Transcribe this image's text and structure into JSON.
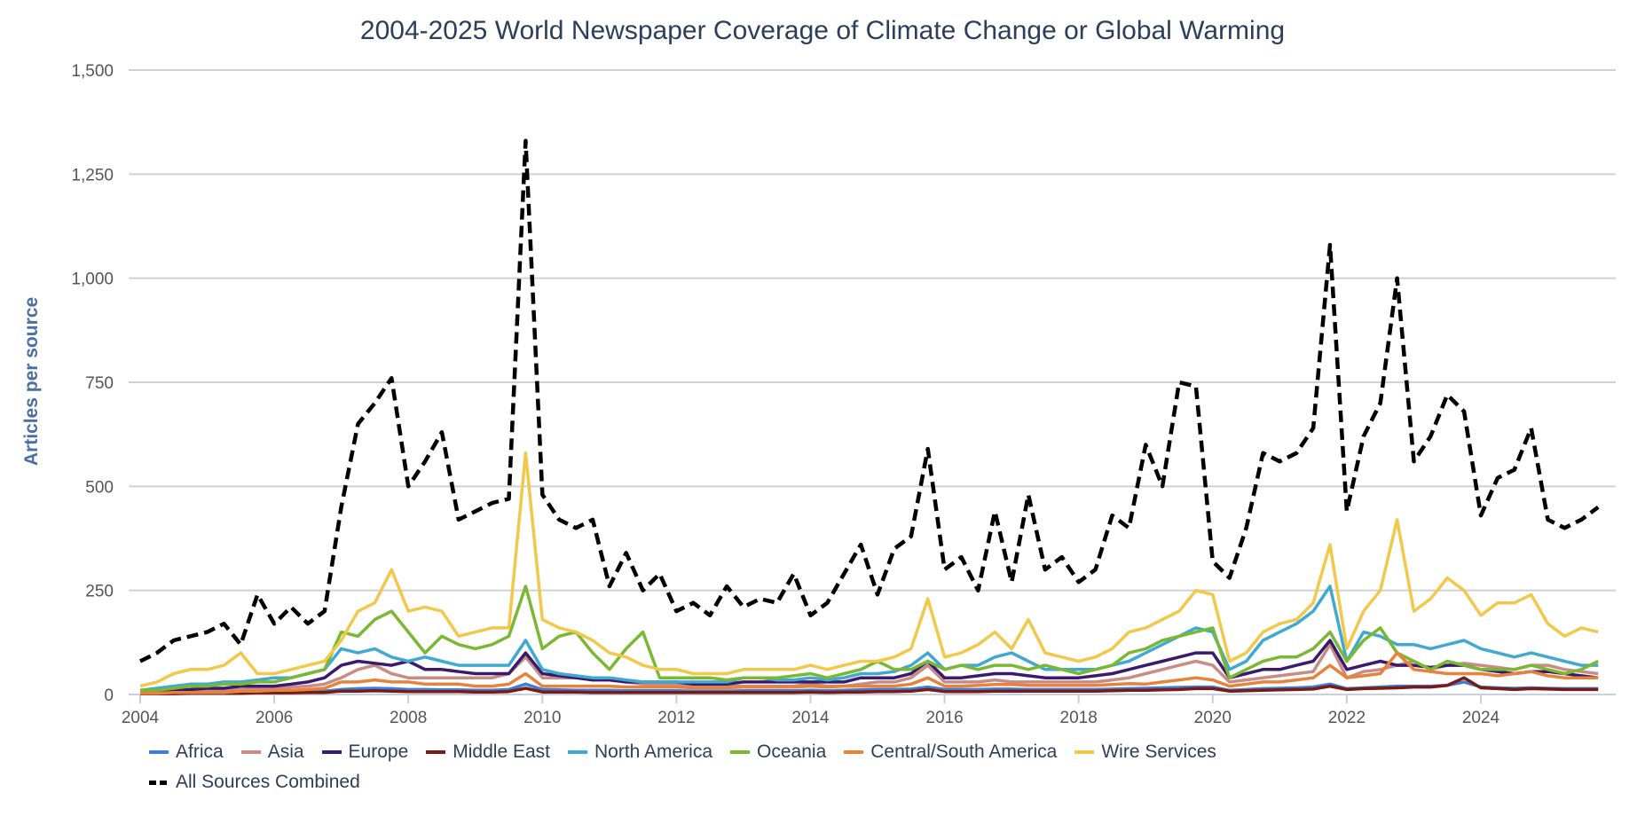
{
  "chart_data": {
    "type": "line",
    "title": "2004-2025 World Newspaper Coverage of Climate Change or Global Warming",
    "ylabel": "Articles per source",
    "xlabel": "",
    "ylim": [
      0,
      1500
    ],
    "xlim": [
      2004,
      2025.75
    ],
    "yticks": [
      0,
      250,
      500,
      750,
      1000,
      1250,
      1500
    ],
    "ytick_labels": [
      "0",
      "250",
      "500",
      "750",
      "1,000",
      "1,250",
      "1,500"
    ],
    "xticks": [
      2004,
      2006,
      2008,
      2010,
      2012,
      2014,
      2016,
      2018,
      2020,
      2022,
      2024
    ],
    "xtick_labels": [
      "2004",
      "2006",
      "2008",
      "2010",
      "2012",
      "2014",
      "2016",
      "2018",
      "2020",
      "2022",
      "2024"
    ],
    "grid": "horizontal",
    "legend_position": "bottom",
    "x": [
      2004,
      2004.25,
      2004.5,
      2004.75,
      2005,
      2005.25,
      2005.5,
      2005.75,
      2006,
      2006.25,
      2006.5,
      2006.75,
      2007,
      2007.25,
      2007.5,
      2007.75,
      2008,
      2008.25,
      2008.5,
      2008.75,
      2009,
      2009.25,
      2009.5,
      2009.75,
      2010,
      2010.25,
      2010.5,
      2010.75,
      2011,
      2011.25,
      2011.5,
      2011.75,
      2012,
      2012.25,
      2012.5,
      2012.75,
      2013,
      2013.25,
      2013.5,
      2013.75,
      2014,
      2014.25,
      2014.5,
      2014.75,
      2015,
      2015.25,
      2015.5,
      2015.75,
      2016,
      2016.25,
      2016.5,
      2016.75,
      2017,
      2017.25,
      2017.5,
      2017.75,
      2018,
      2018.25,
      2018.5,
      2018.75,
      2019,
      2019.25,
      2019.5,
      2019.75,
      2020,
      2020.25,
      2020.5,
      2020.75,
      2021,
      2021.25,
      2021.5,
      2021.75,
      2022,
      2022.25,
      2022.5,
      2022.75,
      2023,
      2023.25,
      2023.5,
      2023.75,
      2024,
      2024.25,
      2024.5,
      2024.75,
      2025,
      2025.25,
      2025.5,
      2025.75
    ],
    "series": [
      {
        "name": "Africa",
        "color": "#3b7dd8",
        "dashed": false,
        "values": [
          3,
          3,
          4,
          4,
          5,
          5,
          6,
          6,
          6,
          7,
          8,
          8,
          12,
          14,
          15,
          14,
          12,
          12,
          11,
          11,
          10,
          10,
          12,
          25,
          12,
          11,
          10,
          10,
          10,
          9,
          9,
          9,
          9,
          8,
          8,
          8,
          9,
          9,
          9,
          9,
          10,
          9,
          10,
          11,
          12,
          12,
          13,
          18,
          12,
          12,
          12,
          13,
          13,
          12,
          12,
          12,
          12,
          12,
          13,
          14,
          15,
          16,
          17,
          18,
          18,
          10,
          12,
          14,
          15,
          16,
          18,
          25,
          14,
          16,
          18,
          20,
          20,
          20,
          22,
          30,
          18,
          16,
          15,
          16,
          15,
          14,
          14,
          14
        ]
      },
      {
        "name": "Asia",
        "color": "#c98b85",
        "dashed": false,
        "values": [
          5,
          5,
          8,
          10,
          10,
          12,
          12,
          15,
          15,
          18,
          20,
          25,
          40,
          60,
          70,
          50,
          40,
          40,
          40,
          40,
          40,
          40,
          50,
          90,
          40,
          40,
          40,
          35,
          35,
          30,
          25,
          25,
          25,
          20,
          20,
          20,
          20,
          20,
          20,
          20,
          25,
          20,
          20,
          25,
          30,
          30,
          40,
          70,
          30,
          30,
          30,
          35,
          30,
          30,
          30,
          30,
          30,
          30,
          35,
          40,
          50,
          60,
          70,
          80,
          70,
          30,
          35,
          40,
          45,
          50,
          55,
          120,
          40,
          55,
          60,
          70,
          80,
          60,
          70,
          75,
          70,
          65,
          60,
          70,
          70,
          60,
          55,
          50
        ]
      },
      {
        "name": "Europe",
        "color": "#3a1a6e",
        "dashed": false,
        "values": [
          5,
          8,
          10,
          12,
          15,
          15,
          20,
          20,
          20,
          25,
          30,
          40,
          70,
          80,
          75,
          70,
          80,
          60,
          60,
          55,
          50,
          50,
          50,
          100,
          50,
          45,
          40,
          35,
          35,
          30,
          30,
          30,
          30,
          25,
          25,
          25,
          30,
          30,
          30,
          30,
          30,
          30,
          30,
          40,
          40,
          40,
          50,
          80,
          40,
          40,
          45,
          50,
          50,
          45,
          40,
          40,
          40,
          45,
          50,
          60,
          70,
          80,
          90,
          100,
          100,
          40,
          50,
          60,
          60,
          70,
          80,
          130,
          60,
          70,
          80,
          70,
          70,
          65,
          70,
          70,
          60,
          55,
          50,
          55,
          55,
          50,
          45,
          40
        ]
      },
      {
        "name": "Middle East",
        "color": "#7a1a12",
        "dashed": false,
        "values": [
          2,
          2,
          2,
          3,
          3,
          3,
          3,
          4,
          4,
          4,
          5,
          5,
          8,
          8,
          9,
          8,
          7,
          7,
          7,
          7,
          6,
          6,
          7,
          15,
          6,
          6,
          6,
          5,
          5,
          5,
          5,
          5,
          5,
          5,
          5,
          5,
          5,
          5,
          5,
          5,
          6,
          5,
          6,
          6,
          7,
          7,
          8,
          12,
          7,
          7,
          7,
          8,
          8,
          8,
          8,
          8,
          8,
          8,
          9,
          10,
          10,
          11,
          12,
          14,
          14,
          8,
          9,
          10,
          11,
          12,
          13,
          20,
          12,
          14,
          15,
          16,
          18,
          18,
          22,
          40,
          16,
          14,
          12,
          14,
          13,
          12,
          12,
          12
        ]
      },
      {
        "name": "North America",
        "color": "#3fa9d2",
        "dashed": false,
        "values": [
          10,
          15,
          20,
          25,
          25,
          30,
          30,
          35,
          40,
          40,
          50,
          60,
          110,
          100,
          110,
          90,
          80,
          90,
          80,
          70,
          70,
          70,
          70,
          130,
          60,
          50,
          45,
          40,
          40,
          35,
          30,
          30,
          30,
          30,
          30,
          30,
          40,
          40,
          35,
          35,
          40,
          35,
          40,
          50,
          50,
          55,
          70,
          100,
          60,
          70,
          70,
          90,
          100,
          80,
          60,
          60,
          60,
          60,
          70,
          80,
          100,
          120,
          140,
          160,
          150,
          60,
          80,
          130,
          150,
          170,
          200,
          260,
          80,
          150,
          140,
          120,
          120,
          110,
          120,
          130,
          110,
          100,
          90,
          100,
          90,
          80,
          70,
          70
        ]
      },
      {
        "name": "Oceania",
        "color": "#7ab833",
        "dashed": false,
        "values": [
          10,
          10,
          15,
          20,
          20,
          25,
          25,
          30,
          30,
          40,
          50,
          60,
          150,
          140,
          180,
          200,
          150,
          100,
          140,
          120,
          110,
          120,
          140,
          260,
          110,
          140,
          150,
          100,
          60,
          110,
          150,
          40,
          40,
          40,
          40,
          35,
          40,
          40,
          40,
          45,
          50,
          40,
          50,
          60,
          80,
          60,
          60,
          80,
          60,
          70,
          60,
          70,
          70,
          60,
          70,
          60,
          50,
          60,
          70,
          100,
          110,
          130,
          140,
          150,
          160,
          40,
          60,
          80,
          90,
          90,
          110,
          150,
          80,
          130,
          160,
          100,
          80,
          60,
          80,
          70,
          60,
          60,
          60,
          70,
          60,
          50,
          60,
          80
        ]
      },
      {
        "name": "Central/South America",
        "color": "#e8823a",
        "dashed": false,
        "values": [
          3,
          3,
          5,
          5,
          5,
          5,
          8,
          8,
          10,
          10,
          12,
          15,
          30,
          30,
          35,
          30,
          30,
          25,
          25,
          25,
          20,
          20,
          25,
          50,
          20,
          20,
          20,
          20,
          20,
          18,
          18,
          18,
          18,
          16,
          16,
          16,
          18,
          18,
          18,
          18,
          20,
          18,
          20,
          20,
          20,
          20,
          25,
          40,
          20,
          20,
          22,
          24,
          24,
          22,
          22,
          22,
          22,
          22,
          24,
          26,
          25,
          30,
          35,
          40,
          35,
          20,
          25,
          30,
          30,
          35,
          40,
          70,
          40,
          45,
          50,
          100,
          60,
          55,
          50,
          50,
          50,
          45,
          50,
          55,
          45,
          40,
          40,
          40
        ]
      },
      {
        "name": "Wire Services",
        "color": "#f2c84b",
        "dashed": false,
        "values": [
          20,
          30,
          50,
          60,
          60,
          70,
          100,
          50,
          50,
          60,
          70,
          80,
          130,
          200,
          220,
          300,
          200,
          210,
          200,
          140,
          150,
          160,
          160,
          580,
          180,
          160,
          150,
          130,
          100,
          90,
          70,
          60,
          60,
          50,
          50,
          50,
          60,
          60,
          60,
          60,
          70,
          60,
          70,
          80,
          80,
          90,
          110,
          230,
          90,
          100,
          120,
          150,
          110,
          180,
          100,
          90,
          80,
          90,
          110,
          150,
          160,
          180,
          200,
          250,
          240,
          80,
          100,
          150,
          170,
          180,
          220,
          360,
          110,
          200,
          250,
          420,
          200,
          230,
          280,
          250,
          190,
          220,
          220,
          240,
          170,
          140,
          160,
          150
        ]
      },
      {
        "name": "All Sources Combined",
        "color": "#000000",
        "dashed": true,
        "values": [
          80,
          100,
          130,
          140,
          150,
          170,
          120,
          240,
          170,
          210,
          170,
          200,
          450,
          650,
          700,
          760,
          500,
          560,
          630,
          420,
          440,
          460,
          470,
          1330,
          480,
          420,
          400,
          420,
          260,
          340,
          250,
          290,
          200,
          220,
          190,
          260,
          210,
          230,
          220,
          290,
          190,
          220,
          290,
          360,
          240,
          350,
          380,
          590,
          300,
          330,
          250,
          440,
          270,
          480,
          300,
          330,
          270,
          300,
          430,
          400,
          600,
          500,
          750,
          740,
          320,
          280,
          400,
          580,
          560,
          580,
          640,
          1080,
          440,
          620,
          700,
          1000,
          560,
          620,
          720,
          680,
          430,
          520,
          540,
          640,
          420,
          400,
          420,
          450
        ]
      }
    ]
  }
}
